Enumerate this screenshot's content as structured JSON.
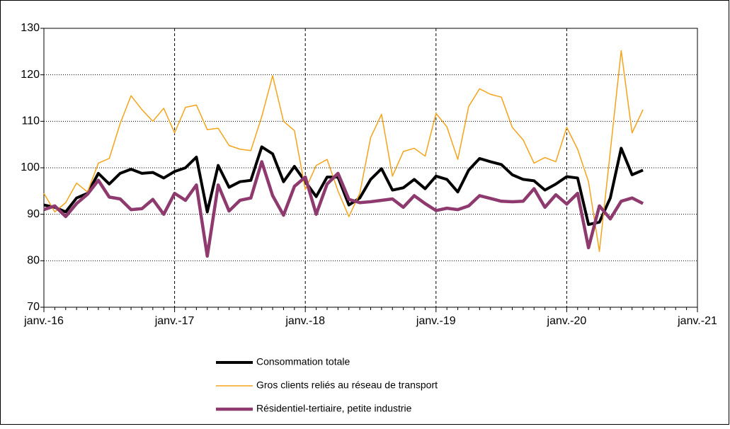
{
  "chart_data": {
    "type": "line",
    "categories": [
      "janv.-16",
      null,
      null,
      null,
      null,
      null,
      null,
      null,
      null,
      null,
      null,
      null,
      "janv.-17",
      null,
      null,
      null,
      null,
      null,
      null,
      null,
      null,
      null,
      null,
      null,
      "janv.-18",
      null,
      null,
      null,
      null,
      null,
      null,
      null,
      null,
      null,
      null,
      null,
      "janv.-19",
      null,
      null,
      null,
      null,
      null,
      null,
      null,
      null,
      null,
      null,
      null,
      "janv.-20",
      null,
      null,
      null,
      null,
      null,
      null,
      null,
      null,
      null,
      null,
      null,
      "janv.-21"
    ],
    "series": [
      {
        "name": "Consommation totale",
        "color": "#000000",
        "width": 4,
        "values": [
          92,
          91.5,
          90.5,
          93.5,
          94.5,
          98.8,
          96.5,
          98.8,
          99.7,
          98.8,
          99,
          97.8,
          99.2,
          100,
          102.3,
          90.5,
          100.5,
          95.8,
          97,
          97.3,
          104.5,
          103,
          97,
          100.3,
          97,
          93.8,
          98,
          98,
          92,
          93.5,
          97.5,
          99.8,
          95.2,
          95.7,
          97.5,
          95.5,
          98.2,
          97.5,
          94.8,
          99.5,
          102,
          101.3,
          100.7,
          98.5,
          97.5,
          97.2,
          95.2,
          96.5,
          98.1,
          97.8,
          87.8,
          88.3,
          93.5,
          104.2,
          98.5,
          99.5,
          null,
          null,
          null,
          null,
          null
        ]
      },
      {
        "name": "Gros clients reliés au réseau de transport",
        "color": "#f5a31a",
        "width": 1.5,
        "values": [
          94.5,
          90.5,
          92.5,
          96.7,
          94.8,
          101,
          102,
          109.5,
          115.5,
          112.5,
          110,
          112.8,
          107.5,
          113,
          113.5,
          108.2,
          108.5,
          104.8,
          104,
          103.7,
          111,
          119.8,
          110,
          108,
          95.3,
          100.5,
          101.8,
          95,
          89.5,
          94.5,
          106.5,
          111.5,
          98.2,
          103.5,
          104.2,
          102.5,
          111.7,
          108.8,
          101.8,
          113.2,
          117,
          115.8,
          115.2,
          108.7,
          106,
          101,
          102.2,
          101.3,
          108.7,
          104,
          97,
          82,
          103.5,
          125.2,
          107.5,
          112.5,
          null,
          null,
          null,
          null,
          null
        ]
      },
      {
        "name": "Résidentiel-tertiaire, petite industrie",
        "color": "#8e3a6e",
        "width": 4.5,
        "values": [
          91,
          91.8,
          89.5,
          92.3,
          94.3,
          97.3,
          93.7,
          93.3,
          91,
          91.2,
          93.2,
          90,
          94.5,
          93,
          96.3,
          81,
          96.3,
          90.7,
          93,
          93.5,
          101.3,
          94,
          89.8,
          96,
          98,
          90,
          96.5,
          98.8,
          93.2,
          92.5,
          92.7,
          93,
          93.3,
          91.5,
          94,
          92.3,
          90.8,
          91.3,
          91,
          91.8,
          94,
          93.4,
          92.8,
          92.7,
          92.8,
          95.5,
          91.5,
          94.2,
          92.2,
          94.5,
          82.8,
          91.8,
          89,
          92.8,
          93.5,
          92.3,
          null,
          null,
          null,
          null,
          null
        ]
      }
    ],
    "ylim": [
      70,
      130
    ],
    "yticks": [
      70,
      80,
      90,
      100,
      110,
      120,
      130
    ],
    "grid": true,
    "legend": "bottom"
  }
}
